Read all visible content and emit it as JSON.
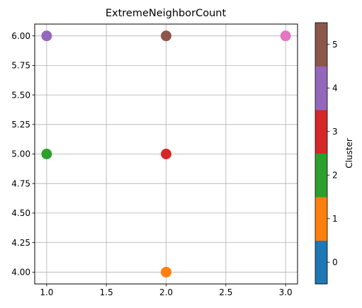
{
  "chart_data": {
    "type": "scatter",
    "title": "ExtremeNeighborCount",
    "xlabel": "",
    "ylabel": "",
    "xlim": [
      0.9,
      3.1
    ],
    "ylim": [
      3.9,
      6.1
    ],
    "xticks": [
      "1.0",
      "1.5",
      "2.0",
      "2.5",
      "3.0"
    ],
    "yticks": [
      "4.00",
      "4.25",
      "4.50",
      "4.75",
      "5.00",
      "5.25",
      "5.50",
      "5.75",
      "6.00"
    ],
    "grid": true,
    "points": [
      {
        "x": 1.0,
        "y": 6.0,
        "cluster": 4
      },
      {
        "x": 2.0,
        "y": 6.0,
        "cluster": 5
      },
      {
        "x": 3.0,
        "y": 6.0,
        "cluster": 6
      },
      {
        "x": 1.0,
        "y": 5.0,
        "cluster": 2
      },
      {
        "x": 2.0,
        "y": 5.0,
        "cluster": 3
      },
      {
        "x": 2.0,
        "y": 4.0,
        "cluster": 1
      }
    ],
    "colorbar": {
      "label": "Cluster",
      "ticks": [
        "0",
        "1",
        "2",
        "3",
        "4",
        "5"
      ],
      "colors": [
        "#1f77b4",
        "#ff7f0e",
        "#2ca02c",
        "#d62728",
        "#9467bd",
        "#8c564b"
      ]
    },
    "point_colors": {
      "1": "#ff7f0e",
      "2": "#2ca02c",
      "3": "#d62728",
      "4": "#9467bd",
      "5": "#8c564b",
      "6": "#e377c2"
    }
  }
}
